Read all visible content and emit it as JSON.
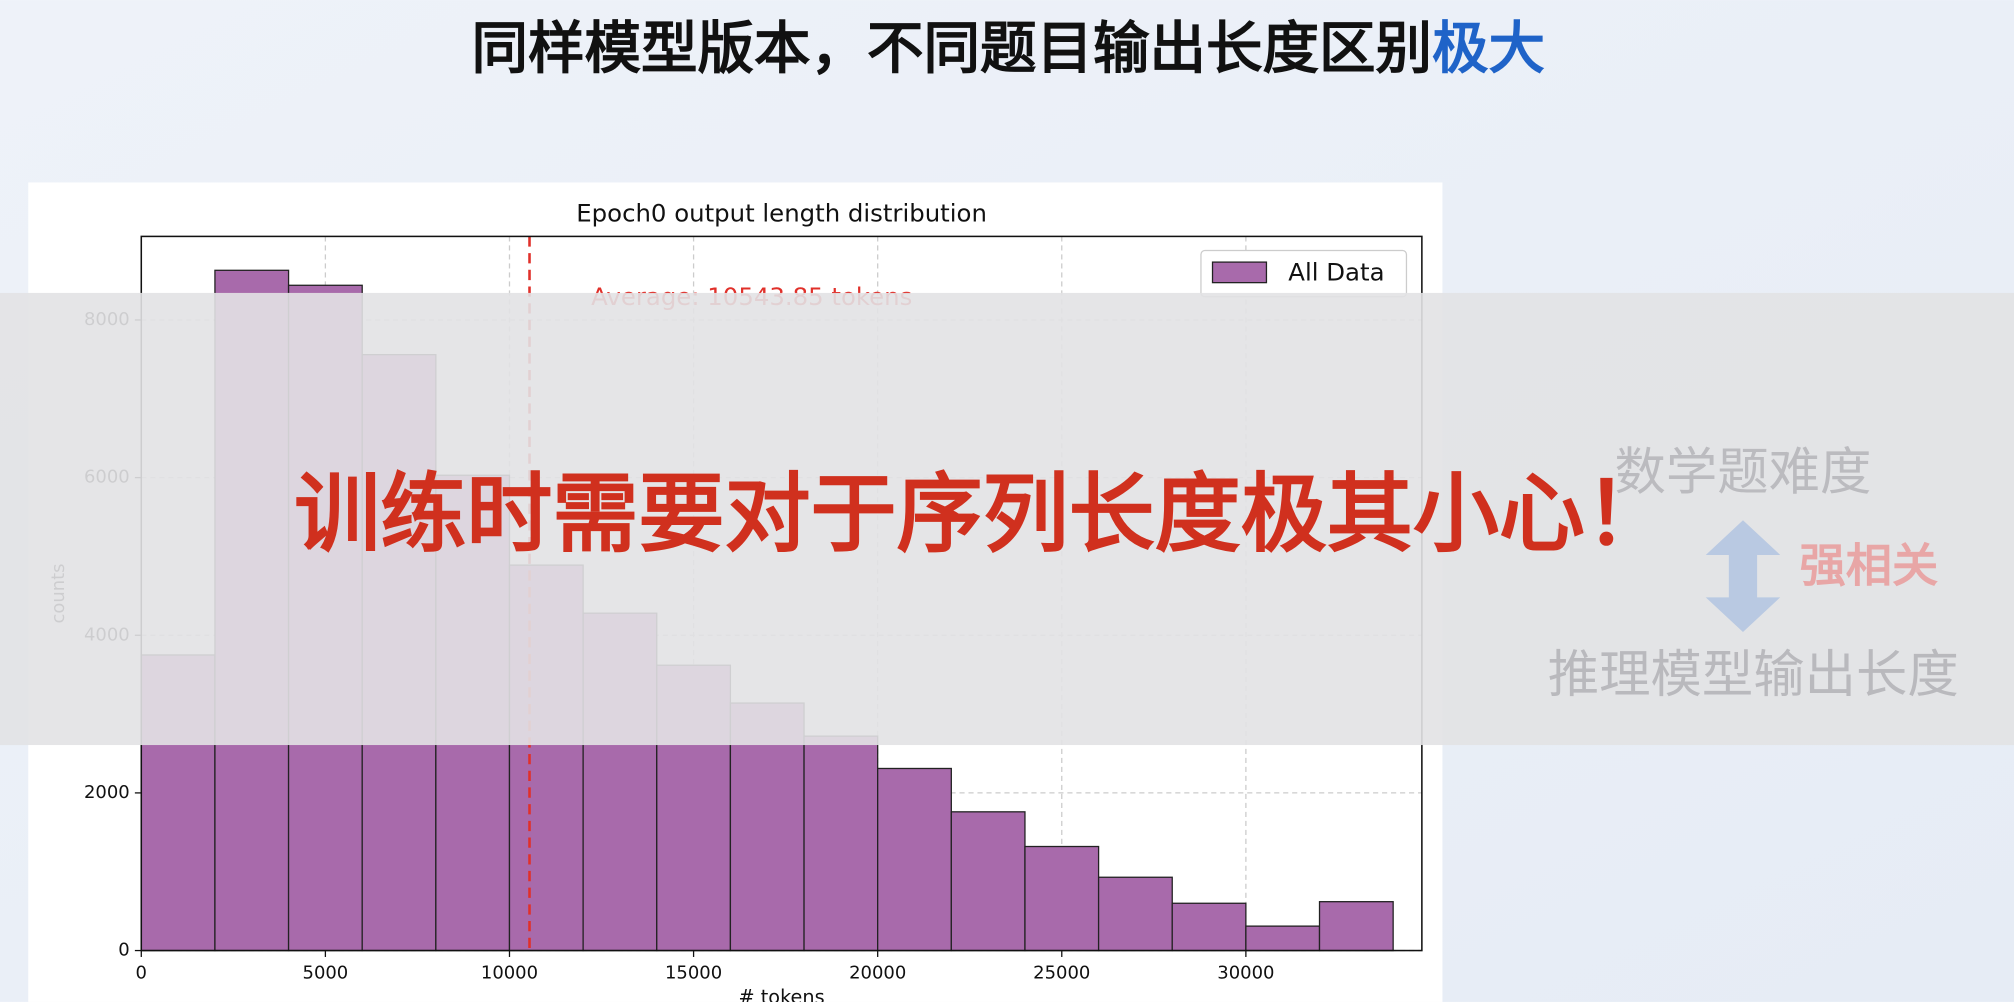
{
  "slide_title": "同样模型版本，不同题目输出长度区别",
  "slide_title_highlight": "极大",
  "chart_data": {
    "type": "histogram",
    "title": "Epoch0 output length distribution",
    "xlabel": "# tokens",
    "ylabel": "counts",
    "bins": [
      0,
      2000,
      4000,
      6000,
      8000,
      10000,
      12000,
      14000,
      16000,
      18000,
      20000,
      22000,
      24000,
      26000,
      28000,
      30000,
      32000,
      34000
    ],
    "series": [
      {
        "name": "All Data",
        "color": "#a86aab",
        "values": [
          3750,
          8630,
          8440,
          7560,
          6030,
          4890,
          4280,
          3620,
          3140,
          2720,
          2310,
          1760,
          1320,
          930,
          600,
          310,
          620
        ]
      }
    ],
    "average": {
      "value": 10543.85,
      "label": "Average: 10543.85 tokens",
      "color": "#e0302a"
    },
    "xlim": [
      0,
      34780
    ],
    "ylim": [
      0,
      9060
    ],
    "xticks": [
      0,
      5000,
      10000,
      15000,
      20000,
      25000,
      30000
    ],
    "yticks": [
      0,
      2000,
      4000,
      6000,
      8000
    ],
    "grid": true,
    "legend": "upper right"
  },
  "overlay_text": "训练时需要对于序列长度极其小心！",
  "side": {
    "top": "数学题难度",
    "relation": "强相关",
    "bottom": "推理模型输出长度"
  }
}
